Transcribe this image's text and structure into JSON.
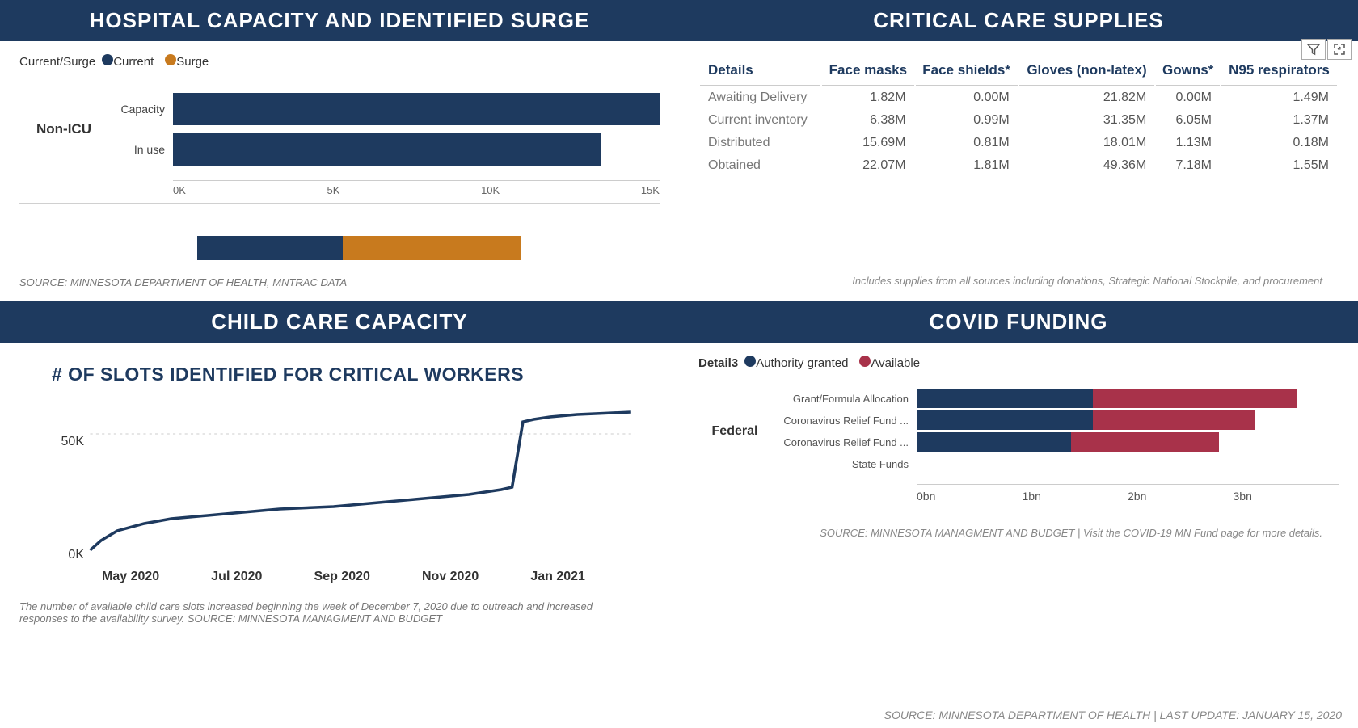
{
  "colors": {
    "header_bg": "#1e3a5f",
    "current": "#1e3a5f",
    "surge": "#c87a1e",
    "available": "#a8324a",
    "line": "#1e3a5f",
    "grid": "#cccccc"
  },
  "hospital": {
    "title": "HOSPITAL CAPACITY AND IDENTIFIED SURGE",
    "legend_label": "Current/Surge",
    "legend_items": [
      {
        "label": "Current",
        "color": "#1e3a5f"
      },
      {
        "label": "Surge",
        "color": "#c87a1e"
      }
    ],
    "group_label": "Non-ICU",
    "rows": [
      {
        "label": "Capacity",
        "value": 15000,
        "color": "#1e3a5f"
      },
      {
        "label": "In use",
        "value": 13200,
        "color": "#1e3a5f"
      }
    ],
    "x_max": 15000,
    "x_ticks": [
      "0K",
      "5K",
      "10K",
      "15K"
    ],
    "stacked": [
      {
        "value": 45,
        "color": "#1e3a5f"
      },
      {
        "value": 55,
        "color": "#c87a1e"
      }
    ],
    "source": "SOURCE: MINNESOTA DEPARTMENT OF HEALTH, MNTRAC DATA"
  },
  "supplies": {
    "title": "CRITICAL CARE SUPPLIES",
    "columns": [
      "Details",
      "Face masks",
      "Face shields*",
      "Gloves (non-latex)",
      "Gowns*",
      "N95 respirators"
    ],
    "rows": [
      [
        "Awaiting Delivery",
        "1.82M",
        "0.00M",
        "21.82M",
        "0.00M",
        "1.49M"
      ],
      [
        "Current inventory",
        "6.38M",
        "0.99M",
        "31.35M",
        "6.05M",
        "1.37M"
      ],
      [
        "Distributed",
        "15.69M",
        "0.81M",
        "18.01M",
        "1.13M",
        "0.18M"
      ],
      [
        "Obtained",
        "22.07M",
        "1.81M",
        "49.36M",
        "7.18M",
        "1.55M"
      ]
    ],
    "note": "Includes supplies from all sources including donations, Strategic National Stockpile, and procurement"
  },
  "childcare": {
    "title": "CHILD CARE CAPACITY",
    "subtitle": "# OF SLOTS IDENTIFIED FOR CRITICAL WORKERS",
    "y_ticks": [
      "50K",
      "0K"
    ],
    "y_max": 60000,
    "x_labels": [
      "May 2020",
      "Jul 2020",
      "Sep 2020",
      "Nov 2020",
      "Jan 2021"
    ],
    "line_points": [
      [
        0,
        2000
      ],
      [
        2,
        6000
      ],
      [
        5,
        10000
      ],
      [
        10,
        13000
      ],
      [
        15,
        15000
      ],
      [
        20,
        16000
      ],
      [
        25,
        17000
      ],
      [
        30,
        18000
      ],
      [
        35,
        19000
      ],
      [
        40,
        19500
      ],
      [
        45,
        20000
      ],
      [
        50,
        21000
      ],
      [
        55,
        22000
      ],
      [
        60,
        23000
      ],
      [
        65,
        24000
      ],
      [
        70,
        25000
      ],
      [
        73,
        26000
      ],
      [
        76,
        27000
      ],
      [
        78,
        28000
      ],
      [
        80,
        55000
      ],
      [
        82,
        56000
      ],
      [
        85,
        57000
      ],
      [
        90,
        58000
      ],
      [
        95,
        58500
      ],
      [
        100,
        59000
      ]
    ],
    "source": "The number of available child care slots increased beginning the week of December 7, 2020 due to outreach and increased responses to the availability survey. SOURCE: MINNESOTA MANAGMENT AND BUDGET"
  },
  "funding": {
    "title": "COVID FUNDING",
    "legend_label": "Detail3",
    "legend_items": [
      {
        "label": "Authority granted",
        "color": "#1e3a5f"
      },
      {
        "label": "Available",
        "color": "#a8324a"
      }
    ],
    "group_label": "Federal",
    "rows": [
      {
        "label": "Grant/Formula Allocation",
        "granted": 1.25,
        "available": 1.45
      },
      {
        "label": "Coronavirus Relief Fund ...",
        "granted": 1.25,
        "available": 1.15
      },
      {
        "label": "Coronavirus Relief Fund ...",
        "granted": 1.1,
        "available": 1.05
      },
      {
        "label": "State Funds",
        "granted": 0,
        "available": 0
      }
    ],
    "x_max": 3,
    "x_ticks": [
      "0bn",
      "1bn",
      "2bn",
      "3bn"
    ],
    "source": "SOURCE: MINNESOTA MANAGMENT AND BUDGET | Visit the COVID-19 MN Fund page for more details."
  },
  "footer": "SOURCE: MINNESOTA DEPARTMENT OF HEALTH | LAST UPDATE: JANUARY 15, 2020"
}
